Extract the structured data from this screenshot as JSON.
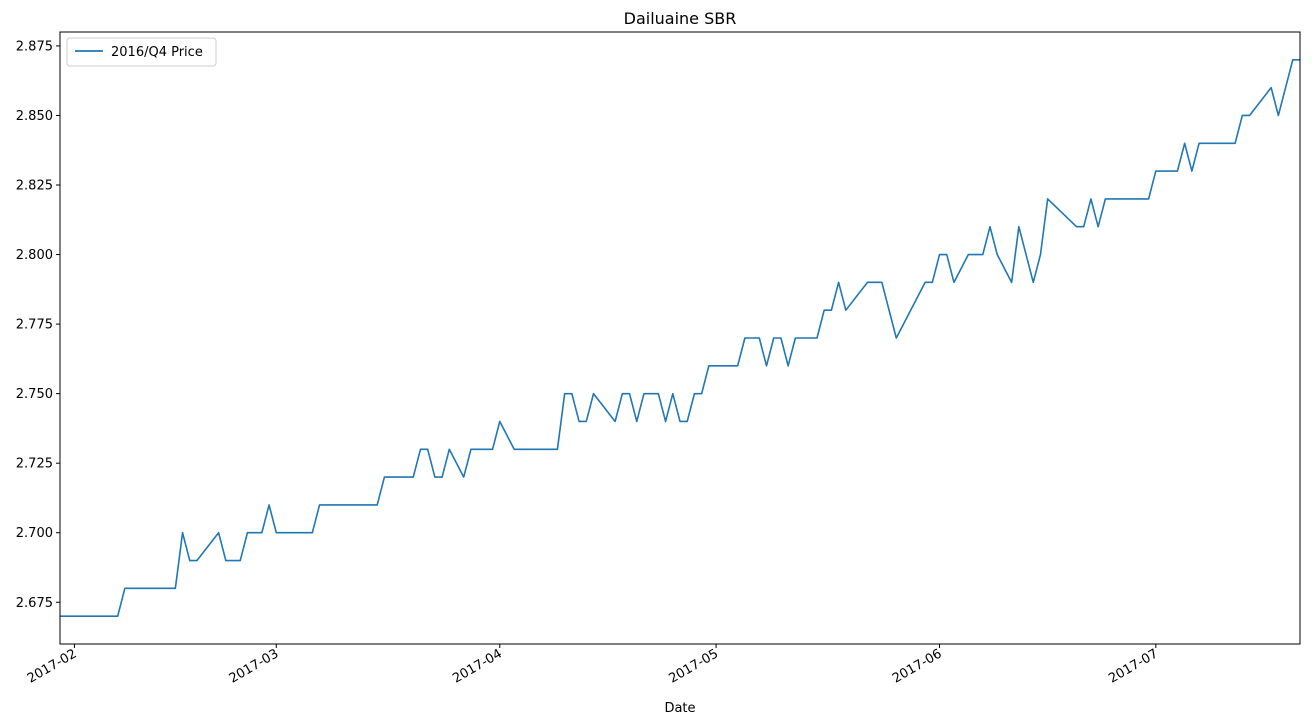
{
  "chart_data": {
    "type": "line",
    "title": "Dailuaine SBR",
    "xlabel": "Date",
    "ylabel": "",
    "xlim": [
      "2017-01-30",
      "2017-07-21"
    ],
    "ylim": [
      2.66,
      2.88
    ],
    "grid": false,
    "legend_position": "top-left",
    "y_ticks": [
      "2.675",
      "2.700",
      "2.725",
      "2.750",
      "2.775",
      "2.800",
      "2.825",
      "2.850",
      "2.875"
    ],
    "x_ticks": [
      {
        "date": "2017-02-01",
        "label": "2017-02"
      },
      {
        "date": "2017-03-01",
        "label": "2017-03"
      },
      {
        "date": "2017-04-01",
        "label": "2017-04"
      },
      {
        "date": "2017-05-01",
        "label": "2017-05"
      },
      {
        "date": "2017-06-01",
        "label": "2017-06"
      },
      {
        "date": "2017-07-01",
        "label": "2017-07"
      }
    ],
    "series": [
      {
        "name": "2016/Q4 Price",
        "color": "#1f77b4",
        "points": [
          [
            "2017-01-30",
            2.67
          ],
          [
            "2017-02-07",
            2.67
          ],
          [
            "2017-02-08",
            2.68
          ],
          [
            "2017-02-15",
            2.68
          ],
          [
            "2017-02-16",
            2.7
          ],
          [
            "2017-02-17",
            2.69
          ],
          [
            "2017-02-18",
            2.69
          ],
          [
            "2017-02-21",
            2.7
          ],
          [
            "2017-02-22",
            2.69
          ],
          [
            "2017-02-24",
            2.69
          ],
          [
            "2017-02-25",
            2.7
          ],
          [
            "2017-02-27",
            2.7
          ],
          [
            "2017-02-28",
            2.71
          ],
          [
            "2017-03-01",
            2.7
          ],
          [
            "2017-03-06",
            2.7
          ],
          [
            "2017-03-07",
            2.71
          ],
          [
            "2017-03-15",
            2.71
          ],
          [
            "2017-03-16",
            2.72
          ],
          [
            "2017-03-20",
            2.72
          ],
          [
            "2017-03-21",
            2.73
          ],
          [
            "2017-03-22",
            2.73
          ],
          [
            "2017-03-23",
            2.72
          ],
          [
            "2017-03-24",
            2.72
          ],
          [
            "2017-03-25",
            2.73
          ],
          [
            "2017-03-27",
            2.72
          ],
          [
            "2017-03-28",
            2.73
          ],
          [
            "2017-03-31",
            2.73
          ],
          [
            "2017-04-01",
            2.74
          ],
          [
            "2017-04-03",
            2.73
          ],
          [
            "2017-04-09",
            2.73
          ],
          [
            "2017-04-10",
            2.75
          ],
          [
            "2017-04-11",
            2.75
          ],
          [
            "2017-04-12",
            2.74
          ],
          [
            "2017-04-13",
            2.74
          ],
          [
            "2017-04-14",
            2.75
          ],
          [
            "2017-04-17",
            2.74
          ],
          [
            "2017-04-18",
            2.75
          ],
          [
            "2017-04-19",
            2.75
          ],
          [
            "2017-04-20",
            2.74
          ],
          [
            "2017-04-21",
            2.75
          ],
          [
            "2017-04-23",
            2.75
          ],
          [
            "2017-04-24",
            2.74
          ],
          [
            "2017-04-25",
            2.75
          ],
          [
            "2017-04-26",
            2.74
          ],
          [
            "2017-04-27",
            2.74
          ],
          [
            "2017-04-28",
            2.75
          ],
          [
            "2017-04-29",
            2.75
          ],
          [
            "2017-04-30",
            2.76
          ],
          [
            "2017-05-04",
            2.76
          ],
          [
            "2017-05-05",
            2.77
          ],
          [
            "2017-05-07",
            2.77
          ],
          [
            "2017-05-08",
            2.76
          ],
          [
            "2017-05-09",
            2.77
          ],
          [
            "2017-05-10",
            2.77
          ],
          [
            "2017-05-11",
            2.76
          ],
          [
            "2017-05-12",
            2.77
          ],
          [
            "2017-05-15",
            2.77
          ],
          [
            "2017-05-16",
            2.78
          ],
          [
            "2017-05-17",
            2.78
          ],
          [
            "2017-05-18",
            2.79
          ],
          [
            "2017-05-19",
            2.78
          ],
          [
            "2017-05-22",
            2.79
          ],
          [
            "2017-05-24",
            2.79
          ],
          [
            "2017-05-26",
            2.77
          ],
          [
            "2017-05-30",
            2.79
          ],
          [
            "2017-05-31",
            2.79
          ],
          [
            "2017-06-01",
            2.8
          ],
          [
            "2017-06-02",
            2.8
          ],
          [
            "2017-06-03",
            2.79
          ],
          [
            "2017-06-05",
            2.8
          ],
          [
            "2017-06-07",
            2.8
          ],
          [
            "2017-06-08",
            2.81
          ],
          [
            "2017-06-09",
            2.8
          ],
          [
            "2017-06-11",
            2.79
          ],
          [
            "2017-06-12",
            2.81
          ],
          [
            "2017-06-14",
            2.79
          ],
          [
            "2017-06-15",
            2.8
          ],
          [
            "2017-06-16",
            2.82
          ],
          [
            "2017-06-20",
            2.81
          ],
          [
            "2017-06-21",
            2.81
          ],
          [
            "2017-06-22",
            2.82
          ],
          [
            "2017-06-23",
            2.81
          ],
          [
            "2017-06-24",
            2.82
          ],
          [
            "2017-06-30",
            2.82
          ],
          [
            "2017-07-01",
            2.83
          ],
          [
            "2017-07-04",
            2.83
          ],
          [
            "2017-07-05",
            2.84
          ],
          [
            "2017-07-06",
            2.83
          ],
          [
            "2017-07-07",
            2.84
          ],
          [
            "2017-07-12",
            2.84
          ],
          [
            "2017-07-13",
            2.85
          ],
          [
            "2017-07-14",
            2.85
          ],
          [
            "2017-07-17",
            2.86
          ],
          [
            "2017-07-18",
            2.85
          ],
          [
            "2017-07-20",
            2.87
          ],
          [
            "2017-07-21",
            2.87
          ]
        ]
      }
    ]
  }
}
